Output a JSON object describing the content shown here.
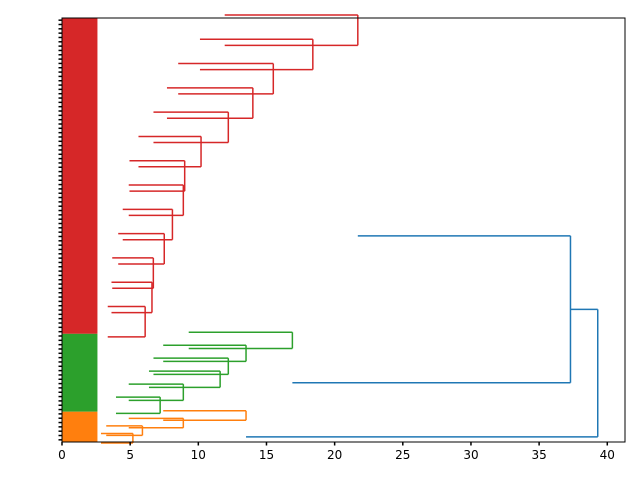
{
  "chart_data": {
    "type": "dendrogram",
    "orientation": "left",
    "xlim": [
      0,
      41.3
    ],
    "xticks": [
      0,
      5,
      10,
      15,
      20,
      25,
      30,
      35,
      40
    ],
    "xtick_labels": [
      "0",
      "5",
      "10",
      "15",
      "20",
      "25",
      "30",
      "35",
      "40"
    ],
    "grid": false,
    "colors": {
      "above_threshold": "#1f77b4",
      "cluster_red": "#d62728",
      "cluster_green": "#2ca02c",
      "cluster_orange": "#ff7f0e"
    },
    "clusters": [
      {
        "color": "cluster_red",
        "leaf_count": 73,
        "merges": [
          {
            "height": 21.7,
            "children": [
              "red_main",
              "red_lower"
            ]
          },
          {
            "height": 18.4,
            "children": [
              "red_upper",
              "red_middle"
            ]
          },
          {
            "height": 15.5,
            "children": [
              "red_top_block",
              "red_mid_block"
            ]
          },
          {
            "height": 14.0,
            "children": [
              "red_top_a",
              "red_top_b"
            ]
          },
          {
            "height": 12.2,
            "children": [
              "red_low_a",
              "red_low_b"
            ]
          },
          {
            "height": 10.2,
            "children": [
              "red_low_c",
              "red_low_d"
            ]
          },
          {
            "height": 9.0,
            "children": [
              "red_top_b1",
              "red_top_b2"
            ]
          },
          {
            "height": 8.9,
            "children": [
              "red_mid_a",
              "red_mid_b"
            ]
          },
          {
            "height": 8.1,
            "children": [
              "red_top_a1",
              "red_top_a2"
            ]
          },
          {
            "height": 7.5,
            "children": [
              "red_top_c1",
              "red_top_c2"
            ]
          },
          {
            "height": 6.7,
            "children": [
              "red_mid_c1",
              "red_mid_c2"
            ]
          },
          {
            "height": 6.6,
            "children": [
              "red_top_d1",
              "red_top_d2"
            ]
          },
          {
            "height": 6.1,
            "children": [
              "red_low_e1",
              "red_low_e2"
            ]
          }
        ]
      },
      {
        "color": "cluster_green",
        "leaf_count": 18,
        "merges": [
          {
            "height": 16.9,
            "children": [
              "green_upper",
              "green_lower"
            ]
          },
          {
            "height": 13.5,
            "children": [
              "green_a",
              "green_b"
            ]
          },
          {
            "height": 12.2,
            "children": [
              "green_c",
              "green_d"
            ]
          },
          {
            "height": 11.6,
            "children": [
              "green_e",
              "green_f"
            ]
          },
          {
            "height": 8.9,
            "children": [
              "green_g",
              "green_h"
            ]
          },
          {
            "height": 7.2,
            "children": [
              "green_i",
              "green_j"
            ]
          }
        ]
      },
      {
        "color": "cluster_orange",
        "leaf_count": 7,
        "merges": [
          {
            "height": 13.5,
            "children": [
              "orange_a",
              "orange_b"
            ]
          },
          {
            "height": 8.9,
            "children": [
              "orange_c",
              "orange_d"
            ]
          },
          {
            "height": 5.9,
            "children": [
              "orange_e",
              "orange_f"
            ]
          },
          {
            "height": 5.2,
            "children": [
              "orange_g",
              "orange_h"
            ]
          }
        ]
      }
    ],
    "top_merges": [
      {
        "height": 37.3,
        "children": [
          "red",
          "green"
        ],
        "color": "above_threshold"
      },
      {
        "height": 39.3,
        "children": [
          "red_green",
          "orange"
        ],
        "color": "above_threshold"
      }
    ]
  }
}
